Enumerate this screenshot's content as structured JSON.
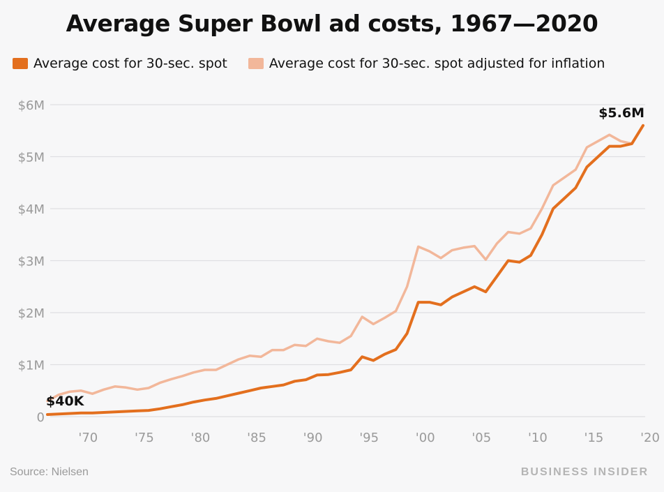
{
  "chart_data": {
    "type": "line",
    "title": "Average Super Bowl ad costs, 1967—2020",
    "xlabel": "",
    "ylabel": "",
    "x": [
      1967,
      1968,
      1969,
      1970,
      1971,
      1972,
      1973,
      1974,
      1975,
      1976,
      1977,
      1978,
      1979,
      1980,
      1981,
      1982,
      1983,
      1984,
      1985,
      1986,
      1987,
      1988,
      1989,
      1990,
      1991,
      1992,
      1993,
      1994,
      1995,
      1996,
      1997,
      1998,
      1999,
      2000,
      2001,
      2002,
      2003,
      2004,
      2005,
      2006,
      2007,
      2008,
      2009,
      2010,
      2011,
      2012,
      2013,
      2014,
      2015,
      2016,
      2017,
      2018,
      2019,
      2020
    ],
    "xlim": [
      1967,
      2020
    ],
    "ylim": [
      0,
      6
    ],
    "y_unit": "millions USD",
    "grid": true,
    "legend_position": "top",
    "series": [
      {
        "name": "Average cost for 30-sec. spot",
        "color": "#e36f1e",
        "values": [
          0.04,
          0.05,
          0.06,
          0.07,
          0.07,
          0.08,
          0.09,
          0.1,
          0.11,
          0.12,
          0.15,
          0.19,
          0.23,
          0.28,
          0.32,
          0.35,
          0.4,
          0.45,
          0.5,
          0.55,
          0.58,
          0.61,
          0.68,
          0.71,
          0.8,
          0.81,
          0.85,
          0.9,
          1.15,
          1.08,
          1.2,
          1.29,
          1.6,
          2.2,
          2.2,
          2.15,
          2.3,
          2.4,
          2.5,
          2.4,
          2.7,
          3.0,
          2.97,
          3.1,
          3.5,
          4.0,
          4.2,
          4.4,
          4.8,
          5.0,
          5.2,
          5.2,
          5.25,
          5.6
        ]
      },
      {
        "name": "Average cost for 30-sec. spot adjusted for inflation",
        "color": "#f2b79a",
        "values": [
          0.3,
          0.42,
          0.48,
          0.5,
          0.44,
          0.52,
          0.58,
          0.56,
          0.52,
          0.55,
          0.65,
          0.72,
          0.78,
          0.85,
          0.9,
          0.9,
          1.0,
          1.1,
          1.17,
          1.15,
          1.28,
          1.28,
          1.38,
          1.36,
          1.5,
          1.45,
          1.42,
          1.55,
          1.92,
          1.78,
          1.9,
          2.03,
          2.5,
          3.27,
          3.18,
          3.05,
          3.2,
          3.25,
          3.28,
          3.02,
          3.33,
          3.55,
          3.52,
          3.62,
          4.0,
          4.45,
          4.6,
          4.75,
          5.18,
          5.3,
          5.42,
          5.3,
          5.25,
          5.6
        ]
      }
    ],
    "y_ticks": [
      {
        "value": 0,
        "label": "0"
      },
      {
        "value": 1,
        "label": "$1M"
      },
      {
        "value": 2,
        "label": "$2M"
      },
      {
        "value": 3,
        "label": "$3M"
      },
      {
        "value": 4,
        "label": "$4M"
      },
      {
        "value": 5,
        "label": "$5M"
      },
      {
        "value": 6,
        "label": "$6M"
      }
    ],
    "x_ticks": [
      {
        "value": 1970,
        "label": "'70"
      },
      {
        "value": 1975,
        "label": "'75"
      },
      {
        "value": 1980,
        "label": "'80"
      },
      {
        "value": 1985,
        "label": "'85"
      },
      {
        "value": 1990,
        "label": "'90"
      },
      {
        "value": 1995,
        "label": "'95"
      },
      {
        "value": 2000,
        "label": "'00"
      },
      {
        "value": 2005,
        "label": "'05"
      },
      {
        "value": 2010,
        "label": "'10"
      },
      {
        "value": 2015,
        "label": "'15"
      },
      {
        "value": 2020,
        "label": "'20"
      }
    ],
    "annotations": [
      {
        "x": 1967,
        "y": 0.04,
        "label": "$40K",
        "anchor": "start"
      },
      {
        "x": 2020,
        "y": 5.6,
        "label": "$5.6M",
        "anchor": "end"
      }
    ]
  },
  "footer": {
    "source": "Source: Nielsen",
    "brand": "BUSINESS INSIDER"
  }
}
